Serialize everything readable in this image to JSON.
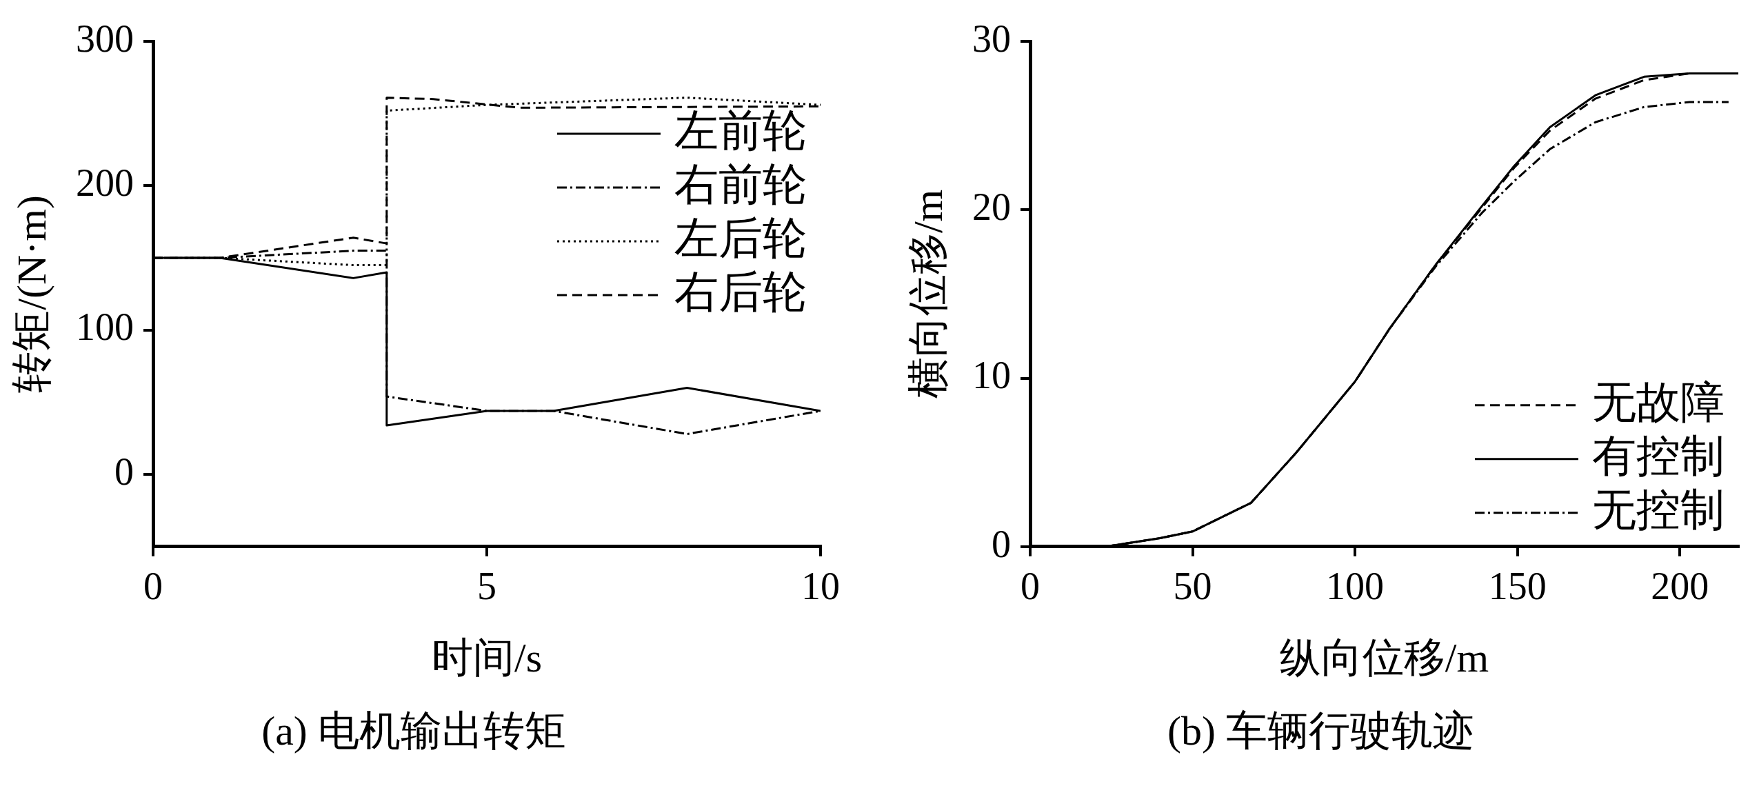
{
  "chart_data": [
    {
      "type": "line",
      "title": "(a) 电机输出转矩",
      "xlabel": "时间/s",
      "ylabel": "转矩/(N·m)",
      "xlim": [
        0,
        10
      ],
      "xticks": [
        0,
        5,
        10
      ],
      "ylim": [
        -50,
        300
      ],
      "yticks": [
        0,
        100,
        200,
        300
      ],
      "grid": false,
      "legend": "top right",
      "marker": "none",
      "series": [
        {
          "name": "左前轮",
          "color": "#000000",
          "line_style": "solid",
          "x": [
            0,
            1,
            3,
            3.5,
            3.5,
            5,
            6,
            8,
            10
          ],
          "values": [
            150,
            150,
            136,
            140,
            34,
            44,
            44,
            60,
            44
          ]
        },
        {
          "name": "右前轮",
          "color": "#000000",
          "line_style": "dashdot",
          "x": [
            0,
            1,
            3,
            3.5,
            3.5,
            5,
            6,
            8,
            10
          ],
          "values": [
            150,
            150,
            155,
            155,
            54,
            44,
            44,
            28,
            44
          ]
        },
        {
          "name": "左后轮",
          "color": "#000000",
          "line_style": "dotted",
          "x": [
            0,
            1,
            3,
            3.5,
            3.5,
            5,
            8,
            10
          ],
          "values": [
            150,
            150,
            145,
            145,
            252,
            256,
            261,
            256
          ]
        },
        {
          "name": "右后轮",
          "color": "#000000",
          "line_style": "dashed",
          "x": [
            0,
            1,
            3,
            3.5,
            3.5,
            4.2,
            5.5,
            10
          ],
          "values": [
            150,
            150,
            164,
            160,
            261,
            260,
            254,
            255
          ]
        }
      ]
    },
    {
      "type": "line",
      "title": "(b) 车辆行驶轨迹",
      "xlabel": "纵向位移/m",
      "ylabel": "横向位移/m",
      "xlim": [
        0,
        218
      ],
      "xticks": [
        0,
        50,
        100,
        150,
        200
      ],
      "ylim": [
        0,
        30
      ],
      "yticks": [
        0,
        10,
        20,
        30
      ],
      "grid": false,
      "legend": "bottom right",
      "marker": "none",
      "series": [
        {
          "name": "无故障",
          "color": "#000000",
          "line_style": "dashed",
          "x": [
            0,
            25,
            40,
            50,
            68,
            82,
            100,
            110.5,
            124.7,
            139,
            149,
            160,
            174,
            189,
            203,
            218
          ],
          "values": [
            0,
            0.05,
            0.5,
            0.9,
            2.6,
            5.6,
            9.8,
            12.9,
            16.7,
            20.1,
            22.5,
            24.7,
            26.6,
            27.7,
            28.1,
            28.1
          ]
        },
        {
          "name": "有控制",
          "color": "#000000",
          "line_style": "solid",
          "x": [
            0,
            25,
            40,
            50,
            68,
            82,
            100,
            110.5,
            124.7,
            139,
            149,
            160,
            174,
            189,
            203,
            218
          ],
          "values": [
            0,
            0.05,
            0.5,
            0.9,
            2.6,
            5.6,
            9.8,
            12.9,
            16.7,
            20.2,
            22.6,
            24.9,
            26.8,
            27.9,
            28.1,
            28.1
          ]
        },
        {
          "name": "无控制",
          "color": "#000000",
          "line_style": "dashdot",
          "x": [
            0,
            25,
            40,
            50,
            68,
            82,
            100,
            110.5,
            124.7,
            139,
            149,
            160,
            174,
            189,
            203,
            215
          ],
          "values": [
            0,
            0.05,
            0.5,
            0.9,
            2.6,
            5.6,
            9.8,
            12.9,
            16.6,
            19.8,
            21.7,
            23.6,
            25.2,
            26.1,
            26.4,
            26.4
          ]
        }
      ]
    }
  ]
}
